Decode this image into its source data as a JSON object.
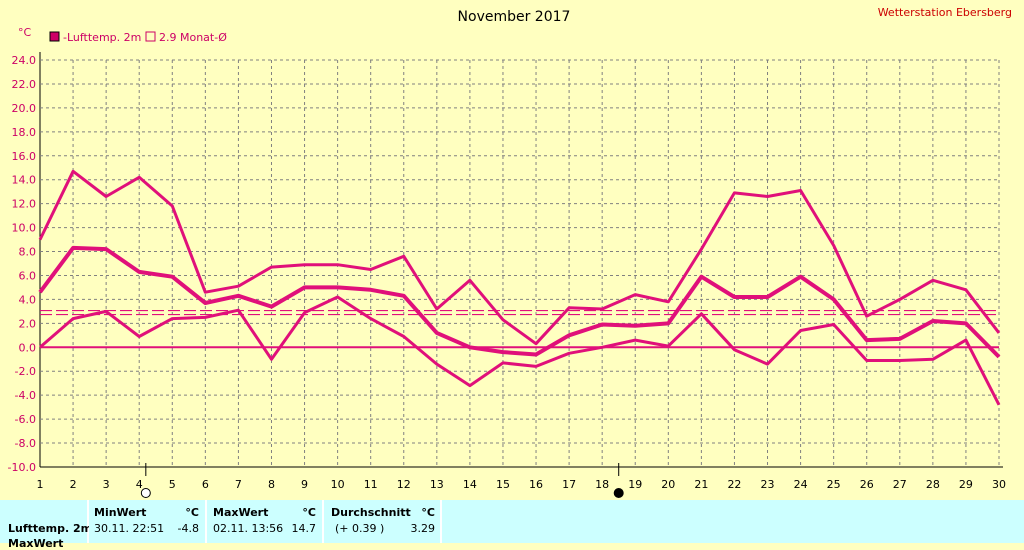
{
  "title": "November 2017",
  "station": "Wetterstation Ebersberg",
  "unit": "°C",
  "legend": [
    {
      "label": "-Lufttemp. 2m",
      "filled": true
    },
    {
      "label": "2.9 Monat-Ø",
      "filled": false
    }
  ],
  "colors": {
    "series": "#e0107a",
    "tick": "#cc0066",
    "background": "#ffffc0",
    "grid": "#808080",
    "table": "#ccffff"
  },
  "chart_data": {
    "type": "line",
    "x": [
      1,
      2,
      3,
      4,
      5,
      6,
      7,
      8,
      9,
      10,
      11,
      12,
      13,
      14,
      15,
      16,
      17,
      18,
      19,
      20,
      21,
      22,
      23,
      24,
      25,
      26,
      27,
      28,
      29,
      30
    ],
    "xticks": [
      "1",
      "2",
      "3",
      "4",
      "5",
      "6",
      "7",
      "8",
      "9",
      "10",
      "11",
      "12",
      "13",
      "14",
      "15",
      "16",
      "17",
      "18",
      "19",
      "20",
      "21",
      "22",
      "23",
      "24",
      "25",
      "26",
      "27",
      "28",
      "29",
      "30"
    ],
    "ylim": [
      -10,
      24
    ],
    "yticks": [
      "24.0",
      "22.0",
      "20.0",
      "18.0",
      "16.0",
      "14.0",
      "12.0",
      "10.0",
      "8.0",
      "6.0",
      "4.0",
      "2.0",
      "0.0",
      "-2.0",
      "-4.0",
      "-6.0",
      "-8.0",
      "-10.0"
    ],
    "grid": true,
    "monthly_average": 2.9,
    "series": [
      {
        "role": "max",
        "values": [
          9.0,
          14.7,
          12.6,
          14.2,
          11.8,
          4.6,
          5.1,
          6.7,
          6.9,
          6.9,
          6.5,
          7.6,
          3.2,
          5.6,
          2.3,
          0.3,
          3.3,
          3.2,
          4.4,
          3.8,
          8.2,
          12.9,
          12.6,
          13.1,
          8.5,
          2.6,
          4.0,
          5.6,
          4.8,
          1.2
        ]
      },
      {
        "role": "mean",
        "values": [
          4.6,
          8.3,
          8.2,
          6.3,
          5.9,
          3.7,
          4.3,
          3.4,
          5.0,
          5.0,
          4.8,
          4.3,
          1.2,
          0.0,
          -0.4,
          -0.6,
          1.0,
          1.9,
          1.8,
          2.0,
          5.9,
          4.2,
          4.2,
          5.9,
          4.0,
          0.6,
          0.7,
          2.2,
          2.0,
          -0.8
        ]
      },
      {
        "role": "min",
        "values": [
          0.0,
          2.4,
          3.0,
          0.9,
          2.4,
          2.5,
          3.1,
          -1.0,
          2.9,
          4.2,
          2.4,
          0.9,
          -1.4,
          -3.2,
          -1.3,
          -1.6,
          -0.5,
          0.0,
          0.6,
          0.1,
          2.8,
          -0.2,
          -1.4,
          1.4,
          1.9,
          -1.1,
          -1.1,
          -1.0,
          0.6,
          -4.8
        ]
      }
    ],
    "moon_markers": [
      {
        "day": 4.2,
        "phase": "full"
      },
      {
        "day": 18.5,
        "phase": "new"
      }
    ]
  },
  "table": {
    "row_label": "Lufttemp. 2m",
    "row_label_2": "MaxWert",
    "minwert_header": "MinWert",
    "maxwert_header": "MaxWert",
    "avg_header": "Durchschnitt",
    "unit_header": "°C",
    "min_time": "30.11.  22:51",
    "min_value": "-4.8",
    "max_time": "02.11.  13:56",
    "max_value": "14.7",
    "avg_diff": "(+ 0.39 )",
    "avg_value": "3.29"
  }
}
